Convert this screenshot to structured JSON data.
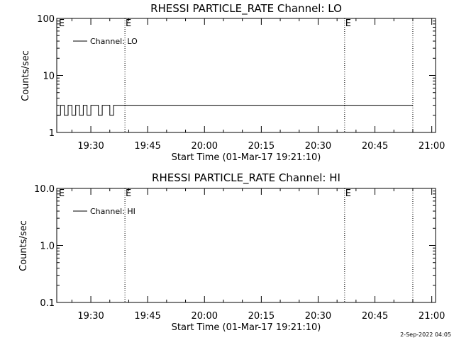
{
  "footer_timestamp": "2-Sep-2022 04:05",
  "chart_data": [
    {
      "type": "line",
      "title": "RHESSI PARTICLE_RATE Channel: LO",
      "xlabel": "Start Time (01-Mar-17 19:21:10)",
      "ylabel": "Counts/sec",
      "yscale": "log",
      "ylim": [
        1,
        100
      ],
      "yticks": [
        {
          "value": 1,
          "label": "1"
        },
        {
          "value": 10,
          "label": "10"
        },
        {
          "value": 100,
          "label": "100"
        }
      ],
      "xlim": [
        "19:21",
        "21:01"
      ],
      "xticks": [
        "19:30",
        "19:45",
        "20:00",
        "20:15",
        "20:30",
        "20:45",
        "21:00"
      ],
      "legend": {
        "position": "top-left",
        "label": "Channel: LO"
      },
      "markers": [
        {
          "time": "19:39",
          "label": "E"
        },
        {
          "time": "20:37",
          "label": "E"
        },
        {
          "time": "20:55",
          "label": ""
        }
      ],
      "corner_label": "E",
      "series": [
        {
          "name": "Channel: LO",
          "x": [
            "19:21",
            "19:22",
            "19:23",
            "19:24",
            "19:25",
            "19:26",
            "19:27",
            "19:28",
            "19:29",
            "19:30",
            "19:31",
            "19:32",
            "19:33",
            "19:34",
            "19:35",
            "19:36",
            "19:37",
            "19:38",
            "19:39",
            "19:40",
            "19:41",
            "19:42",
            "19:43",
            "19:44",
            "19:45",
            "19:46",
            "19:47",
            "19:48",
            "19:49",
            "19:50",
            "19:51",
            "19:52",
            "19:53",
            "19:54",
            "19:55",
            "19:56",
            "19:57",
            "19:58",
            "19:59",
            "20:00",
            "20:01",
            "20:02",
            "20:03",
            "20:04",
            "20:05",
            "20:06",
            "20:07",
            "20:08",
            "20:09",
            "20:10",
            "20:11",
            "20:12",
            "20:13",
            "20:14",
            "20:15",
            "20:16",
            "20:17",
            "20:18",
            "20:19",
            "20:20",
            "20:21",
            "20:22",
            "20:23",
            "20:24",
            "20:25",
            "20:26",
            "20:27",
            "20:28",
            "20:29",
            "20:30",
            "20:31",
            "20:32",
            "20:33",
            "20:34",
            "20:35",
            "20:36",
            "20:37",
            "20:38",
            "20:39",
            "20:40",
            "20:41",
            "20:42",
            "20:43",
            "20:44",
            "20:45",
            "20:46",
            "20:47",
            "20:48",
            "20:49",
            "20:50",
            "20:51",
            "20:52",
            "20:53",
            "20:54",
            "20:55"
          ],
          "values": [
            2,
            3,
            2,
            3,
            2,
            3,
            2,
            3,
            2,
            3,
            3,
            2,
            3,
            3,
            2,
            3,
            3,
            3,
            3,
            3,
            3,
            3,
            3,
            3,
            3,
            3,
            3,
            3,
            3,
            3,
            3,
            3,
            3,
            3,
            3,
            3,
            3,
            3,
            3,
            3,
            3,
            3,
            3,
            3,
            3,
            3,
            3,
            3,
            3,
            3,
            3,
            3,
            3,
            3,
            3,
            3,
            3,
            3,
            3,
            3,
            3,
            3,
            3,
            3,
            3,
            3,
            3,
            3,
            3,
            3,
            3,
            3,
            3,
            3,
            3,
            3,
            3,
            3,
            3,
            3,
            3,
            3,
            3,
            3,
            3,
            3,
            3,
            3,
            3,
            3,
            3,
            3,
            3,
            3,
            3
          ]
        }
      ]
    },
    {
      "type": "line",
      "title": "RHESSI PARTICLE_RATE Channel: HI",
      "xlabel": "Start Time (01-Mar-17 19:21:10)",
      "ylabel": "Counts/sec",
      "yscale": "log",
      "ylim": [
        0.1,
        10
      ],
      "yticks": [
        {
          "value": 0.1,
          "label": "0.1"
        },
        {
          "value": 1,
          "label": "1.0"
        },
        {
          "value": 10,
          "label": "10.0"
        }
      ],
      "xlim": [
        "19:21",
        "21:01"
      ],
      "xticks": [
        "19:30",
        "19:45",
        "20:00",
        "20:15",
        "20:30",
        "20:45",
        "21:00"
      ],
      "legend": {
        "position": "top-left",
        "label": "Channel: HI"
      },
      "markers": [
        {
          "time": "19:39",
          "label": "E"
        },
        {
          "time": "20:37",
          "label": "E"
        },
        {
          "time": "20:55",
          "label": ""
        }
      ],
      "corner_label": "E",
      "series": [
        {
          "name": "Channel: HI",
          "x": [],
          "values": []
        }
      ]
    }
  ]
}
